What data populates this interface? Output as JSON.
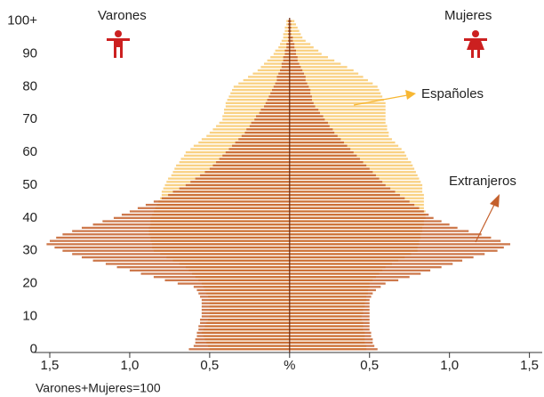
{
  "chart_data": {
    "type": "pyramid",
    "left_label": "Varones",
    "right_label": "Mujeres",
    "note": "Varones+Mujeres=100",
    "xlim": [
      -1.6,
      1.58
    ],
    "ylim": [
      -1,
      101
    ],
    "xticks": [
      {
        "value": -1.5,
        "label": "1,5"
      },
      {
        "value": -1,
        "label": "1,0"
      },
      {
        "value": -0.5,
        "label": "0,5"
      },
      {
        "value": 0,
        "label": "%"
      },
      {
        "value": 0.5,
        "label": "0,5"
      },
      {
        "value": 1,
        "label": "1,0"
      },
      {
        "value": 1.5,
        "label": "1,5"
      }
    ],
    "yticks": [
      0,
      10,
      20,
      30,
      40,
      50,
      60,
      70,
      80,
      90,
      {
        "value": 100,
        "label": "100+"
      }
    ],
    "y": [
      0,
      1,
      2,
      3,
      4,
      5,
      6,
      7,
      8,
      9,
      10,
      11,
      12,
      13,
      14,
      15,
      16,
      17,
      18,
      19,
      20,
      21,
      22,
      23,
      24,
      25,
      26,
      27,
      28,
      29,
      30,
      31,
      32,
      33,
      34,
      35,
      36,
      37,
      38,
      39,
      40,
      41,
      42,
      43,
      44,
      45,
      46,
      47,
      48,
      49,
      50,
      51,
      52,
      53,
      54,
      55,
      56,
      57,
      58,
      59,
      60,
      61,
      62,
      63,
      64,
      65,
      66,
      67,
      68,
      69,
      70,
      71,
      72,
      73,
      74,
      75,
      76,
      77,
      78,
      79,
      80,
      81,
      82,
      83,
      84,
      85,
      86,
      87,
      88,
      89,
      90,
      91,
      92,
      93,
      94,
      95,
      96,
      97,
      98,
      99,
      100
    ],
    "series": [
      {
        "name": "Españoles",
        "color": "#f7c15a",
        "varones": [
          -0.5,
          -0.51,
          -0.52,
          -0.53,
          -0.54,
          -0.55,
          -0.54,
          -0.53,
          -0.52,
          -0.51,
          -0.5,
          -0.5,
          -0.5,
          -0.5,
          -0.5,
          -0.5,
          -0.51,
          -0.52,
          -0.53,
          -0.54,
          -0.55,
          -0.57,
          -0.59,
          -0.61,
          -0.63,
          -0.65,
          -0.69,
          -0.73,
          -0.77,
          -0.81,
          -0.85,
          -0.86,
          -0.86,
          -0.87,
          -0.87,
          -0.88,
          -0.88,
          -0.88,
          -0.87,
          -0.87,
          -0.87,
          -0.86,
          -0.85,
          -0.84,
          -0.83,
          -0.82,
          -0.81,
          -0.8,
          -0.8,
          -0.79,
          -0.78,
          -0.77,
          -0.76,
          -0.74,
          -0.73,
          -0.72,
          -0.71,
          -0.69,
          -0.68,
          -0.66,
          -0.65,
          -0.62,
          -0.6,
          -0.57,
          -0.55,
          -0.52,
          -0.5,
          -0.48,
          -0.46,
          -0.44,
          -0.42,
          -0.42,
          -0.41,
          -0.41,
          -0.4,
          -0.4,
          -0.39,
          -0.38,
          -0.37,
          -0.36,
          -0.35,
          -0.32,
          -0.29,
          -0.26,
          -0.23,
          -0.2,
          -0.18,
          -0.16,
          -0.14,
          -0.12,
          -0.1,
          -0.09,
          -0.07,
          -0.06,
          -0.05,
          -0.04,
          -0.04,
          -0.03,
          -0.03,
          -0.02,
          -0.02
        ],
        "mujeres": [
          0.48,
          0.48,
          0.47,
          0.47,
          0.47,
          0.47,
          0.46,
          0.46,
          0.46,
          0.45,
          0.45,
          0.46,
          0.46,
          0.47,
          0.47,
          0.48,
          0.48,
          0.49,
          0.49,
          0.5,
          0.5,
          0.52,
          0.54,
          0.56,
          0.58,
          0.6,
          0.64,
          0.68,
          0.72,
          0.76,
          0.8,
          0.8,
          0.81,
          0.81,
          0.82,
          0.82,
          0.83,
          0.83,
          0.84,
          0.84,
          0.85,
          0.85,
          0.85,
          0.84,
          0.84,
          0.84,
          0.84,
          0.84,
          0.83,
          0.83,
          0.83,
          0.82,
          0.81,
          0.8,
          0.79,
          0.78,
          0.77,
          0.76,
          0.74,
          0.73,
          0.72,
          0.7,
          0.68,
          0.66,
          0.64,
          0.62,
          0.62,
          0.61,
          0.61,
          0.6,
          0.6,
          0.6,
          0.6,
          0.6,
          0.6,
          0.6,
          0.59,
          0.58,
          0.57,
          0.56,
          0.55,
          0.52,
          0.49,
          0.46,
          0.43,
          0.4,
          0.36,
          0.32,
          0.28,
          0.24,
          0.2,
          0.18,
          0.15,
          0.13,
          0.1,
          0.08,
          0.07,
          0.06,
          0.05,
          0.04,
          0.03
        ]
      },
      {
        "name": "Extranjeros",
        "color": "#c4602c",
        "varones": [
          -0.63,
          -0.6,
          -0.59,
          -0.59,
          -0.58,
          -0.58,
          -0.57,
          -0.57,
          -0.56,
          -0.56,
          -0.55,
          -0.55,
          -0.55,
          -0.55,
          -0.55,
          -0.55,
          -0.56,
          -0.57,
          -0.58,
          -0.6,
          -0.7,
          -0.78,
          -0.85,
          -0.93,
          -1.0,
          -1.08,
          -1.15,
          -1.23,
          -1.3,
          -1.36,
          -1.42,
          -1.47,
          -1.52,
          -1.5,
          -1.46,
          -1.42,
          -1.36,
          -1.3,
          -1.23,
          -1.17,
          -1.1,
          -1.05,
          -1.0,
          -0.95,
          -0.9,
          -0.85,
          -0.8,
          -0.76,
          -0.73,
          -0.69,
          -0.65,
          -0.62,
          -0.59,
          -0.56,
          -0.53,
          -0.5,
          -0.48,
          -0.46,
          -0.44,
          -0.42,
          -0.4,
          -0.38,
          -0.36,
          -0.34,
          -0.32,
          -0.3,
          -0.28,
          -0.27,
          -0.25,
          -0.24,
          -0.22,
          -0.21,
          -0.19,
          -0.18,
          -0.16,
          -0.15,
          -0.14,
          -0.13,
          -0.12,
          -0.11,
          -0.1,
          -0.09,
          -0.08,
          -0.08,
          -0.07,
          -0.06,
          -0.05,
          -0.05,
          -0.04,
          -0.04,
          -0.03,
          -0.03,
          -0.02,
          -0.02,
          -0.01,
          -0.01,
          -0.01,
          -0.01,
          -0.01,
          -0.01,
          -0.01
        ],
        "mujeres": [
          0.55,
          0.53,
          0.52,
          0.52,
          0.51,
          0.51,
          0.5,
          0.5,
          0.5,
          0.5,
          0.5,
          0.5,
          0.5,
          0.5,
          0.5,
          0.5,
          0.51,
          0.52,
          0.54,
          0.57,
          0.6,
          0.68,
          0.75,
          0.82,
          0.88,
          0.95,
          1.02,
          1.08,
          1.15,
          1.22,
          1.3,
          1.34,
          1.38,
          1.32,
          1.26,
          1.2,
          1.12,
          1.05,
          1.0,
          0.95,
          0.9,
          0.87,
          0.84,
          0.81,
          0.78,
          0.75,
          0.72,
          0.69,
          0.66,
          0.63,
          0.6,
          0.58,
          0.56,
          0.54,
          0.52,
          0.5,
          0.48,
          0.46,
          0.44,
          0.42,
          0.4,
          0.38,
          0.36,
          0.34,
          0.32,
          0.3,
          0.28,
          0.27,
          0.25,
          0.24,
          0.22,
          0.21,
          0.19,
          0.18,
          0.16,
          0.15,
          0.14,
          0.14,
          0.13,
          0.13,
          0.12,
          0.11,
          0.1,
          0.1,
          0.09,
          0.08,
          0.07,
          0.06,
          0.05,
          0.05,
          0.04,
          0.04,
          0.03,
          0.03,
          0.02,
          0.02,
          0.01,
          0.01,
          0.01,
          0.01,
          0.01
        ]
      }
    ]
  }
}
